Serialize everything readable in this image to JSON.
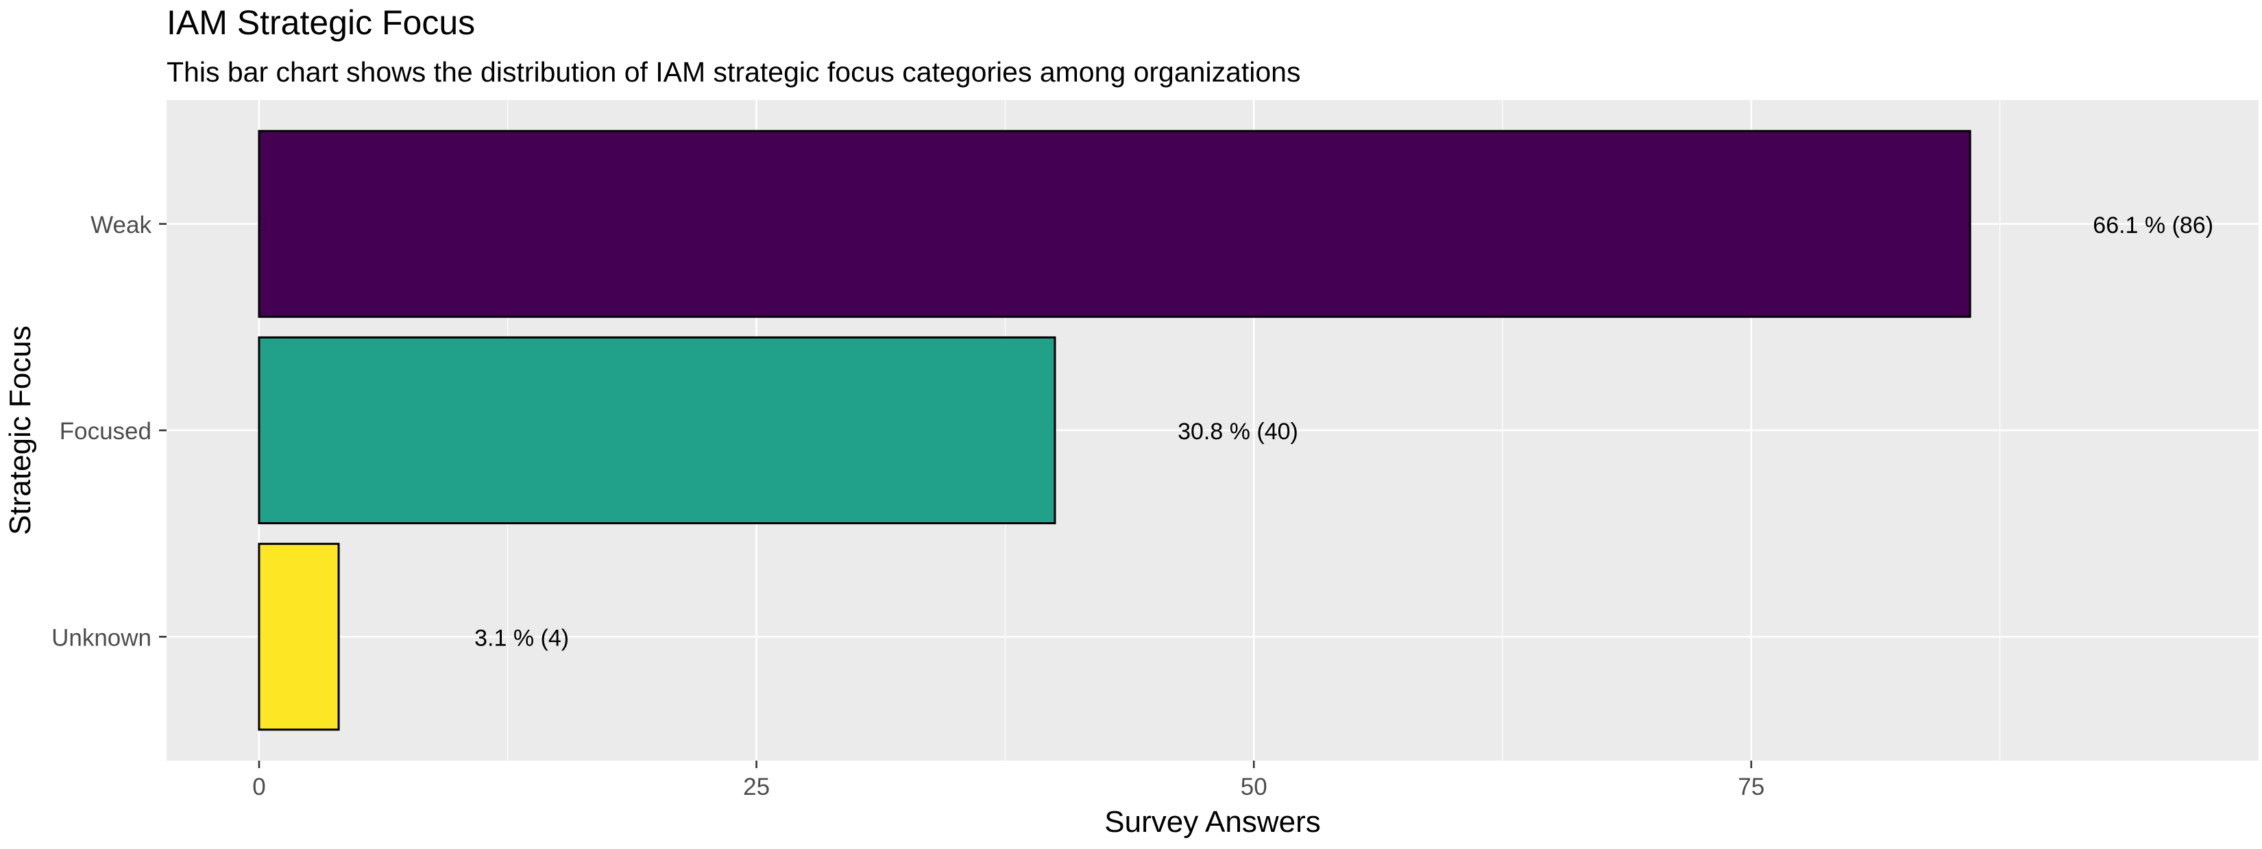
{
  "chart_data": {
    "type": "bar",
    "orientation": "horizontal",
    "title": "IAM Strategic Focus",
    "subtitle": "This bar chart shows the distribution of IAM strategic focus categories among organizations",
    "xlabel": "Survey Answers",
    "ylabel": "Strategic Focus",
    "categories": [
      "Weak",
      "Focused",
      "Unknown"
    ],
    "values": [
      86,
      40,
      4
    ],
    "data_labels": [
      "66.1 % (86)",
      "30.8 % (40)",
      "3.1 % (4)"
    ],
    "bar_colors": [
      "#440154",
      "#21A08A",
      "#FDE725"
    ],
    "xlim": [
      -4.65,
      100.5
    ],
    "x_ticks": [
      0,
      25,
      50,
      75
    ],
    "x_tick_labels": [
      "0",
      "25",
      "50",
      "75"
    ],
    "grid": true,
    "legend": "none",
    "panel_background": "#EBEBEB",
    "grid_color": "#FFFFFF",
    "bar_outline_color": "#000000"
  }
}
